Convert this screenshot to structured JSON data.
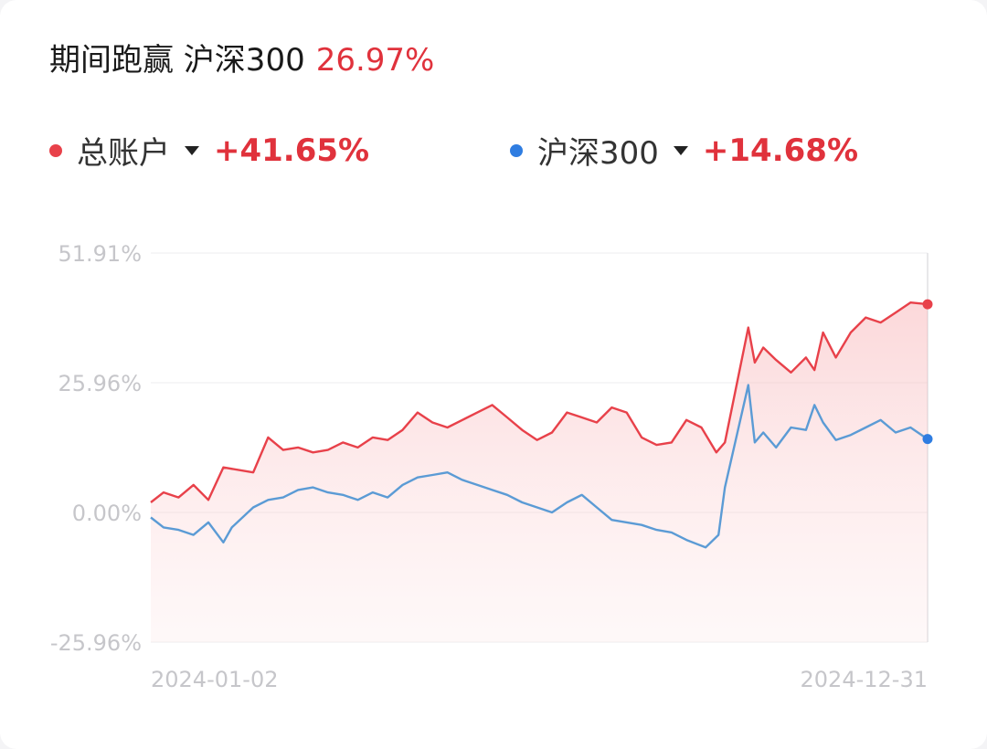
{
  "header": {
    "title": "期间跑赢 沪深300",
    "outperform": "26.97%"
  },
  "legend": [
    {
      "name": "总账户",
      "value": "+41.65%",
      "color": "#e8414a"
    },
    {
      "name": "沪深300",
      "value": "+14.68%",
      "color": "#2f7de1"
    }
  ],
  "chart_data": {
    "type": "line",
    "x_range": [
      "2024-01-02",
      "2024-12-31"
    ],
    "x_tick_labels": [
      "2024-01-02",
      "2024-12-31"
    ],
    "y_tick_labels": [
      "51.91%",
      "25.96%",
      "0.00%",
      "-25.96%"
    ],
    "y_ticks": [
      51.91,
      25.96,
      0,
      -25.96
    ],
    "ylim": [
      -25.96,
      51.91
    ],
    "grid": true,
    "series": [
      {
        "name": "总账户",
        "color": "#e8414a",
        "fill": true,
        "points": [
          [
            "2024-01-02",
            2.0
          ],
          [
            "2024-01-08",
            4.0
          ],
          [
            "2024-01-15",
            3.0
          ],
          [
            "2024-01-22",
            5.5
          ],
          [
            "2024-01-29",
            2.5
          ],
          [
            "2024-02-05",
            9.0
          ],
          [
            "2024-02-19",
            8.0
          ],
          [
            "2024-02-26",
            15.0
          ],
          [
            "2024-03-04",
            12.5
          ],
          [
            "2024-03-11",
            13.0
          ],
          [
            "2024-03-18",
            12.0
          ],
          [
            "2024-03-25",
            12.5
          ],
          [
            "2024-04-01",
            14.0
          ],
          [
            "2024-04-08",
            13.0
          ],
          [
            "2024-04-15",
            15.0
          ],
          [
            "2024-04-22",
            14.5
          ],
          [
            "2024-04-29",
            16.5
          ],
          [
            "2024-05-06",
            20.0
          ],
          [
            "2024-05-13",
            18.0
          ],
          [
            "2024-05-20",
            17.0
          ],
          [
            "2024-05-27",
            18.5
          ],
          [
            "2024-06-03",
            20.0
          ],
          [
            "2024-06-10",
            21.5
          ],
          [
            "2024-06-17",
            19.0
          ],
          [
            "2024-06-24",
            16.5
          ],
          [
            "2024-07-01",
            14.5
          ],
          [
            "2024-07-08",
            16.0
          ],
          [
            "2024-07-15",
            20.0
          ],
          [
            "2024-07-22",
            19.0
          ],
          [
            "2024-07-29",
            18.0
          ],
          [
            "2024-08-05",
            21.0
          ],
          [
            "2024-08-12",
            20.0
          ],
          [
            "2024-08-19",
            15.0
          ],
          [
            "2024-08-26",
            13.5
          ],
          [
            "2024-09-02",
            14.0
          ],
          [
            "2024-09-09",
            18.5
          ],
          [
            "2024-09-16",
            17.0
          ],
          [
            "2024-09-23",
            12.0
          ],
          [
            "2024-09-27",
            14.0
          ],
          [
            "2024-10-08",
            37.0
          ],
          [
            "2024-10-11",
            30.0
          ],
          [
            "2024-10-15",
            33.0
          ],
          [
            "2024-10-21",
            30.5
          ],
          [
            "2024-10-28",
            28.0
          ],
          [
            "2024-11-04",
            31.0
          ],
          [
            "2024-11-08",
            28.5
          ],
          [
            "2024-11-12",
            36.0
          ],
          [
            "2024-11-18",
            31.0
          ],
          [
            "2024-11-25",
            36.0
          ],
          [
            "2024-12-02",
            39.0
          ],
          [
            "2024-12-09",
            38.0
          ],
          [
            "2024-12-16",
            40.0
          ],
          [
            "2024-12-23",
            42.0
          ],
          [
            "2024-12-31",
            41.65
          ]
        ]
      },
      {
        "name": "沪深300",
        "color": "#5b9bd5",
        "fill": false,
        "points": [
          [
            "2024-01-02",
            -1.0
          ],
          [
            "2024-01-08",
            -3.0
          ],
          [
            "2024-01-15",
            -3.5
          ],
          [
            "2024-01-22",
            -4.5
          ],
          [
            "2024-01-29",
            -2.0
          ],
          [
            "2024-02-05",
            -6.0
          ],
          [
            "2024-02-09",
            -3.0
          ],
          [
            "2024-02-19",
            1.0
          ],
          [
            "2024-02-26",
            2.5
          ],
          [
            "2024-03-04",
            3.0
          ],
          [
            "2024-03-11",
            4.5
          ],
          [
            "2024-03-18",
            5.0
          ],
          [
            "2024-03-25",
            4.0
          ],
          [
            "2024-04-01",
            3.5
          ],
          [
            "2024-04-08",
            2.5
          ],
          [
            "2024-04-15",
            4.0
          ],
          [
            "2024-04-22",
            3.0
          ],
          [
            "2024-04-29",
            5.5
          ],
          [
            "2024-05-06",
            7.0
          ],
          [
            "2024-05-13",
            7.5
          ],
          [
            "2024-05-20",
            8.0
          ],
          [
            "2024-05-27",
            6.5
          ],
          [
            "2024-06-03",
            5.5
          ],
          [
            "2024-06-10",
            4.5
          ],
          [
            "2024-06-17",
            3.5
          ],
          [
            "2024-06-24",
            2.0
          ],
          [
            "2024-07-01",
            1.0
          ],
          [
            "2024-07-08",
            0.0
          ],
          [
            "2024-07-15",
            2.0
          ],
          [
            "2024-07-22",
            3.5
          ],
          [
            "2024-07-29",
            1.0
          ],
          [
            "2024-08-05",
            -1.5
          ],
          [
            "2024-08-12",
            -2.0
          ],
          [
            "2024-08-19",
            -2.5
          ],
          [
            "2024-08-26",
            -3.5
          ],
          [
            "2024-09-02",
            -4.0
          ],
          [
            "2024-09-09",
            -5.5
          ],
          [
            "2024-09-18",
            -7.0
          ],
          [
            "2024-09-24",
            -4.5
          ],
          [
            "2024-09-27",
            5.0
          ],
          [
            "2024-10-08",
            25.5
          ],
          [
            "2024-10-11",
            14.0
          ],
          [
            "2024-10-15",
            16.0
          ],
          [
            "2024-10-21",
            13.0
          ],
          [
            "2024-10-28",
            17.0
          ],
          [
            "2024-11-04",
            16.5
          ],
          [
            "2024-11-08",
            21.5
          ],
          [
            "2024-11-12",
            18.0
          ],
          [
            "2024-11-18",
            14.5
          ],
          [
            "2024-11-25",
            15.5
          ],
          [
            "2024-12-02",
            17.0
          ],
          [
            "2024-12-09",
            18.5
          ],
          [
            "2024-12-16",
            16.0
          ],
          [
            "2024-12-23",
            17.0
          ],
          [
            "2024-12-31",
            14.68
          ]
        ]
      }
    ]
  }
}
